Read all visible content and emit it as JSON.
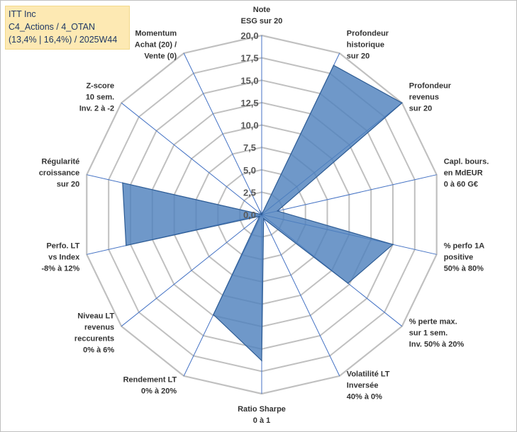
{
  "title_box": {
    "line1": "ITT Inc",
    "line2": "C4_Actions / 4_OTAN",
    "line3": "(13,4% | 16,4%) / 2025W44"
  },
  "colors": {
    "fill": "#4f81bd",
    "stroke": "#2e5c94",
    "grid": "#c0c0c0",
    "spoke": "#4472c4",
    "title_bg": "#fde9b3"
  },
  "chart_data": {
    "type": "radar",
    "title": "ITT Inc",
    "rlim": [
      0,
      20
    ],
    "ticks": [
      "0,0",
      "2,5",
      "5,0",
      "7,5",
      "10,0",
      "12,5",
      "15,0",
      "17,5",
      "20,0"
    ],
    "tick_values": [
      0,
      2.5,
      5,
      7.5,
      10,
      12.5,
      15,
      17.5,
      20
    ],
    "grid": true,
    "axes": [
      {
        "label": [
          "Note",
          "ESG sur 20"
        ],
        "value": 0
      },
      {
        "label": [
          "Profondeur",
          "historique",
          "sur 20"
        ],
        "value": 18.5
      },
      {
        "label": [
          "Profondeur",
          "revenus",
          "sur 20"
        ],
        "value": 20
      },
      {
        "label": [
          "Capl. bours.",
          "en MdEUR",
          "0 à 60 G€"
        ],
        "value": 1.8
      },
      {
        "label": [
          "% perfo 1A",
          "positive",
          "50% à 80%"
        ],
        "value": 15
      },
      {
        "label": [
          "% perte max.",
          "sur 1 sem.",
          "Inv. 50% à 20%"
        ],
        "value": 12.3
      },
      {
        "label": [
          "Volatilité LT",
          "Inversée",
          "40% à 0%"
        ],
        "value": 0.5
      },
      {
        "label": [
          "Ratio Sharpe",
          "0 à 1"
        ],
        "value": 16.3
      },
      {
        "label": [
          "Rendement LT",
          "0% à 20%"
        ],
        "value": 12.4
      },
      {
        "label": [
          "Niveau LT",
          "revenus",
          "reccurents",
          "0% à 6%"
        ],
        "value": 0.3
      },
      {
        "label": [
          "Perfo. LT",
          "vs Index",
          "-8% à 12%"
        ],
        "value": 15.5
      },
      {
        "label": [
          "Régularité",
          "croissance",
          "sur 20"
        ],
        "value": 15.9
      },
      {
        "label": [
          "Z-score",
          "10 sem.",
          "Inv. 2 à -2"
        ],
        "value": 0
      },
      {
        "label": [
          "Momentum",
          "Achat (20) /",
          "Vente (0)"
        ],
        "value": 0.5
      }
    ]
  }
}
